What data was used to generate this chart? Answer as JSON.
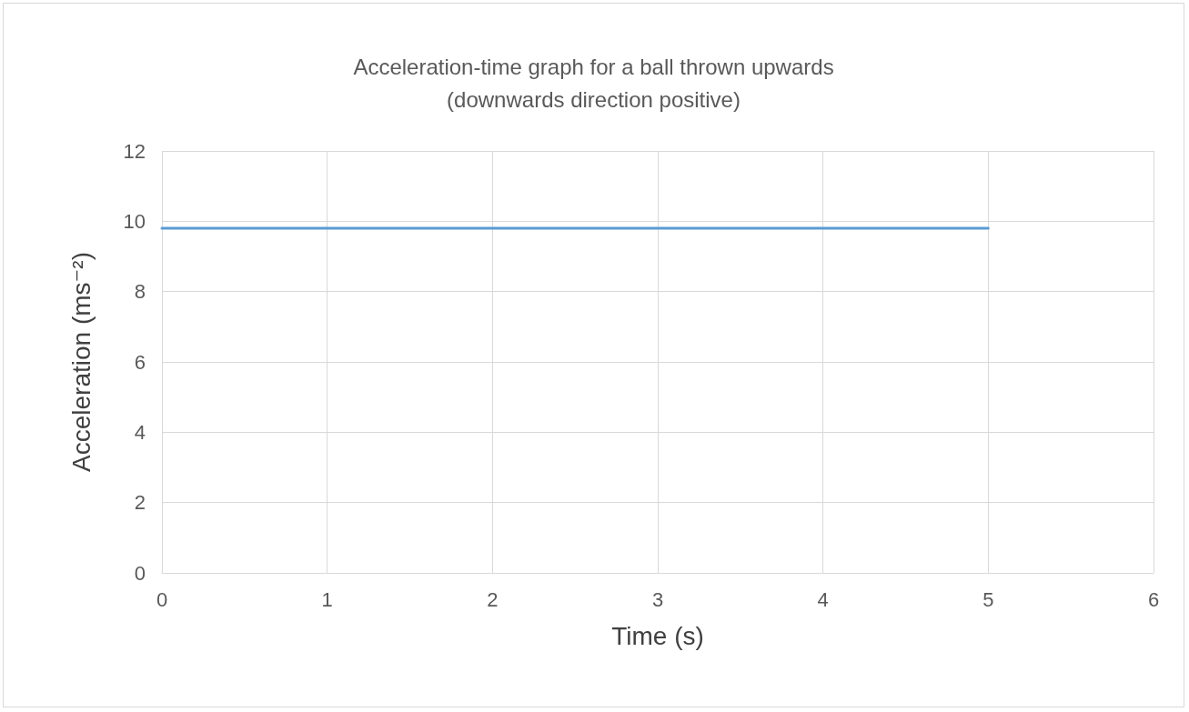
{
  "chart_data": {
    "type": "line",
    "title": "Acceleration-time graph for a ball thrown upwards",
    "subtitle": "(downwards direction positive)",
    "xlabel": "Time (s)",
    "ylabel": "Acceleration (ms⁻²)",
    "x": [
      0,
      5
    ],
    "series": [
      {
        "color": "#5b9bd5",
        "values": [
          9.8,
          9.8
        ]
      }
    ],
    "xlim": [
      0,
      6
    ],
    "xticks": [
      0,
      1,
      2,
      3,
      4,
      5,
      6
    ],
    "ylim": [
      0,
      12
    ],
    "yticks": [
      0,
      2,
      4,
      6,
      8,
      10,
      12
    ],
    "grid": true,
    "marker": "none",
    "line_style": "solid"
  }
}
